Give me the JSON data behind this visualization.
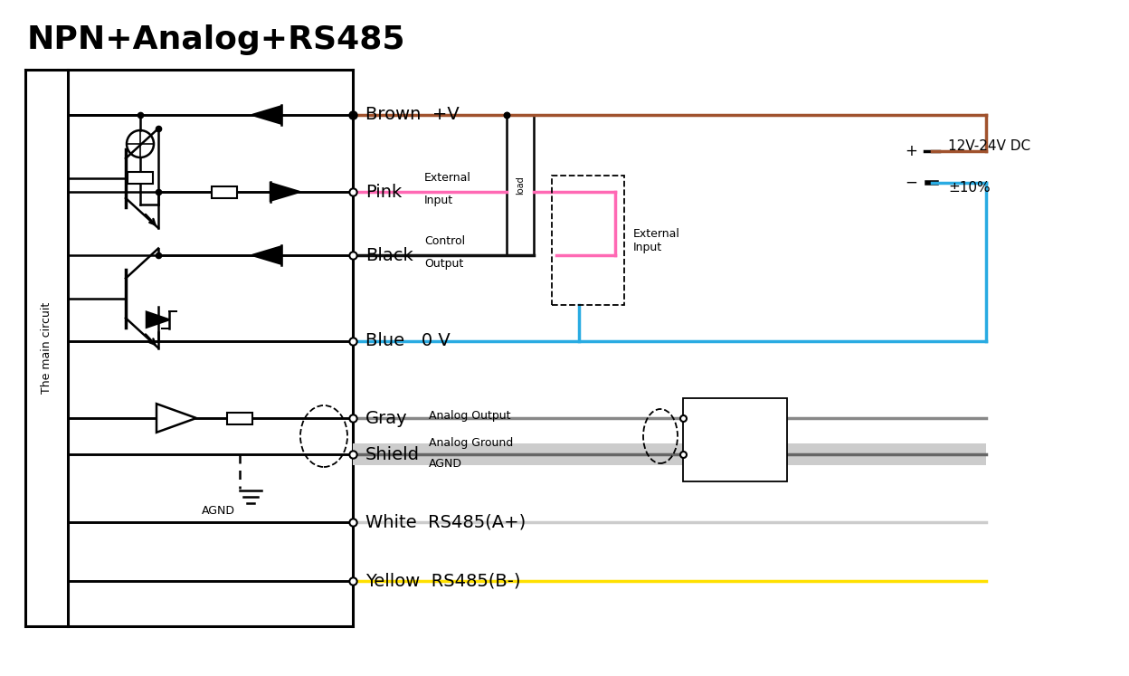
{
  "title": "NPN+Analog+RS485",
  "title_fontsize": 26,
  "bg_color": "#ffffff",
  "wire_colors": {
    "brown": "#A0522D",
    "pink": "#FF69B4",
    "black": "#111111",
    "blue": "#29ABE2",
    "gray": "#888888",
    "shield_bg": "#CCCCCC",
    "white_wire": "#AAAAAA",
    "yellow": "#FFE000"
  },
  "power_label1": "12V-24V DC",
  "power_label2": "±10%"
}
